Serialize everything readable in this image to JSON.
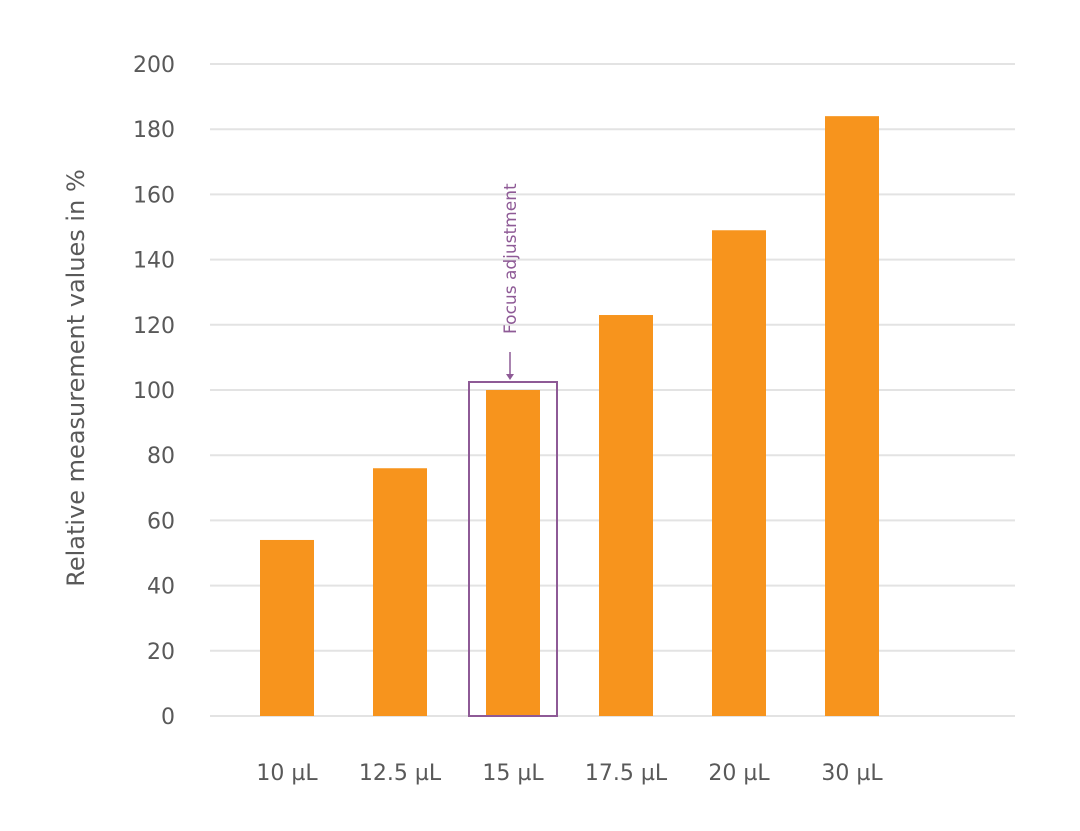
{
  "chart_data": {
    "type": "bar",
    "title": "",
    "xlabel": "",
    "ylabel": "Relative measurement values in %",
    "categories": [
      "10 µL",
      "12.5 µL",
      "15 µL",
      "17.5 µL",
      "20 µL",
      "30 µL"
    ],
    "values": [
      54,
      76,
      100,
      123,
      149,
      184
    ],
    "ylim": [
      0,
      200
    ],
    "yticks": [
      0,
      20,
      40,
      60,
      80,
      100,
      120,
      140,
      160,
      180,
      200
    ],
    "ytick_labels": [
      "0",
      "20",
      "40",
      "60",
      "80",
      "100",
      "120",
      "140",
      "160",
      "180",
      "200"
    ],
    "grid": true,
    "legend": "none",
    "bar_color": "#f7941d",
    "highlight": {
      "category": "15 µL",
      "box_color": "#8e5a96",
      "annotation": "Focus adjustment"
    }
  }
}
